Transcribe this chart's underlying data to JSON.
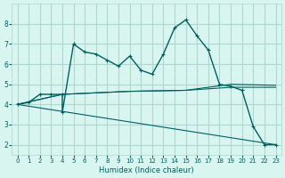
{
  "background_color": "#d8f5f0",
  "grid_color": "#b0d8d0",
  "line_color": "#006060",
  "x_label": "Humidex (Indice chaleur)",
  "x_ticks": [
    0,
    1,
    2,
    3,
    4,
    5,
    6,
    7,
    8,
    9,
    10,
    11,
    12,
    13,
    14,
    15,
    16,
    17,
    18,
    19,
    20,
    21,
    22,
    23
  ],
  "y_ticks": [
    2,
    3,
    4,
    5,
    6,
    7,
    8
  ],
  "ylim": [
    1.5,
    9.0
  ],
  "xlim": [
    -0.5,
    23.5
  ],
  "series": [
    {
      "x": [
        0,
        1,
        2,
        3,
        4,
        4,
        5,
        6,
        7,
        8,
        9,
        10,
        11,
        12,
        13,
        14,
        15,
        16,
        17,
        18,
        19,
        20,
        21,
        22,
        23
      ],
      "y": [
        4.0,
        4.1,
        4.5,
        4.5,
        4.5,
        3.6,
        7.0,
        6.6,
        6.5,
        6.2,
        5.9,
        6.4,
        5.7,
        5.5,
        6.5,
        7.8,
        8.2,
        7.4,
        6.7,
        5.0,
        4.9,
        4.7,
        2.9,
        2.0,
        2.0
      ]
    },
    {
      "x": [
        0,
        4,
        10,
        15,
        19,
        23
      ],
      "y": [
        4.0,
        4.5,
        4.65,
        4.7,
        4.85,
        4.85
      ]
    },
    {
      "x": [
        0,
        4,
        10,
        15,
        19,
        23
      ],
      "y": [
        4.0,
        4.5,
        4.65,
        4.7,
        5.0,
        4.95
      ]
    },
    {
      "x": [
        0,
        23
      ],
      "y": [
        4.0,
        2.0
      ]
    }
  ]
}
